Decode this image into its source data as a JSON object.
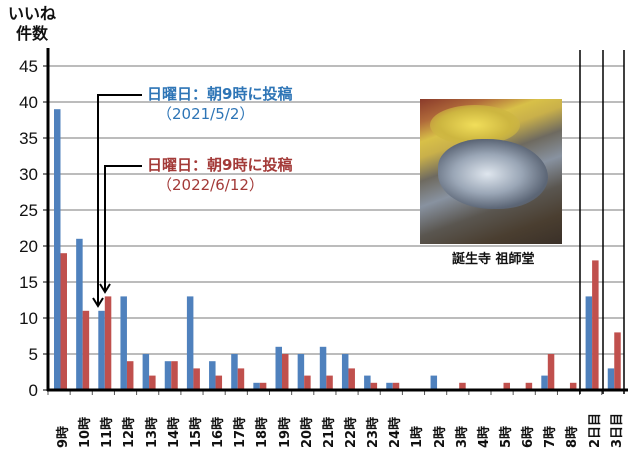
{
  "chart_data": {
    "type": "bar",
    "title": "",
    "ylabel": "いいね 件数",
    "ylabel_lines": [
      "いいね",
      "件数"
    ],
    "xlabel": "",
    "ylim": [
      0,
      45
    ],
    "yticks": [
      0,
      5,
      10,
      15,
      20,
      25,
      30,
      35,
      40,
      45
    ],
    "grid": true,
    "categories": [
      "9時",
      "10時",
      "11時",
      "12時",
      "13時",
      "14時",
      "15時",
      "16時",
      "17時",
      "18時",
      "19時",
      "20時",
      "21時",
      "22時",
      "23時",
      "24時",
      "1時",
      "2時",
      "3時",
      "4時",
      "5時",
      "6時",
      "7時",
      "8時",
      "2日目",
      "3日目"
    ],
    "series": [
      {
        "name": "2021/5/2",
        "color": "#4f81bd",
        "values": [
          39,
          21,
          11,
          13,
          5,
          4,
          13,
          4,
          5,
          1,
          6,
          5,
          6,
          5,
          2,
          1,
          0,
          2,
          0,
          0,
          0,
          0,
          2,
          0,
          13,
          3
        ]
      },
      {
        "name": "2022/6/12",
        "color": "#c0504d",
        "values": [
          19,
          11,
          13,
          4,
          2,
          4,
          3,
          2,
          3,
          1,
          5,
          2,
          2,
          3,
          1,
          1,
          0,
          0,
          1,
          0,
          1,
          1,
          5,
          1,
          18,
          8
        ]
      }
    ],
    "annotations": [
      {
        "text": "日曜日：朝9時に投稿",
        "sub": "（2021/5/2）",
        "color": "#2e75b6",
        "points_to": "11時 (2021)"
      },
      {
        "text": "日曜日：朝9時に投稿",
        "sub": "（2022/6/12）",
        "color": "#a33a38",
        "points_to": "11時 (2022)"
      }
    ],
    "image_caption": "誕生寺 祖師堂"
  },
  "labels": {
    "ylabel_line1": "いいね",
    "ylabel_line2": "件数",
    "ann1_text": "日曜日：朝9時に投稿",
    "ann1_sub": "（2021/5/2）",
    "ann2_text": "日曜日：朝9時に投稿",
    "ann2_sub": "（2022/6/12）",
    "caption": "誕生寺 祖師堂"
  }
}
